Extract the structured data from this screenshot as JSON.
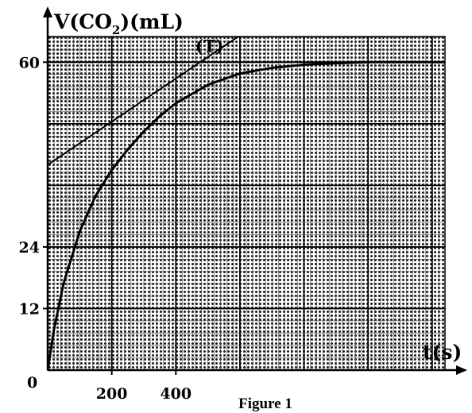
{
  "chart_data": {
    "type": "line",
    "figure_caption": "Figure 1",
    "ylabel_parts": {
      "pre": "V(CO",
      "sub": "2",
      "post": ")(mL)"
    },
    "xlabel": "t(s)",
    "origin_label": "0",
    "x_ticks": [
      {
        "value": 200,
        "label": "200"
      },
      {
        "value": 400,
        "label": "400"
      }
    ],
    "y_ticks": [
      {
        "value": 12,
        "label": "12"
      },
      {
        "value": 24,
        "label": "24"
      },
      {
        "value": 60,
        "label": "60"
      }
    ],
    "xlim": [
      0,
      1240
    ],
    "ylim": [
      0,
      65
    ],
    "grid": true,
    "grid_major_x_step": 200,
    "grid_major_y_step": 12,
    "grid_minor_x_step": 20,
    "grid_minor_y_step": 2.4,
    "series": [
      {
        "role": "curve",
        "x": [
          0,
          20,
          50,
          100,
          150,
          200,
          250,
          300,
          350,
          400,
          500,
          600,
          700,
          800,
          900,
          1000,
          1100,
          1240
        ],
        "y": [
          0,
          8,
          17,
          27,
          34,
          39,
          43,
          46.5,
          49.5,
          52,
          55.6,
          57.8,
          58.9,
          59.5,
          59.8,
          60,
          60,
          60
        ]
      },
      {
        "role": "tangent",
        "label": "(T)",
        "label_at": {
          "x": 505,
          "y": 62
        },
        "x": [
          0,
          690
        ],
        "y": [
          40,
          69
        ]
      },
      {
        "role": "asymptote",
        "x": [
          0,
          1240
        ],
        "y": [
          60,
          60
        ]
      }
    ]
  }
}
